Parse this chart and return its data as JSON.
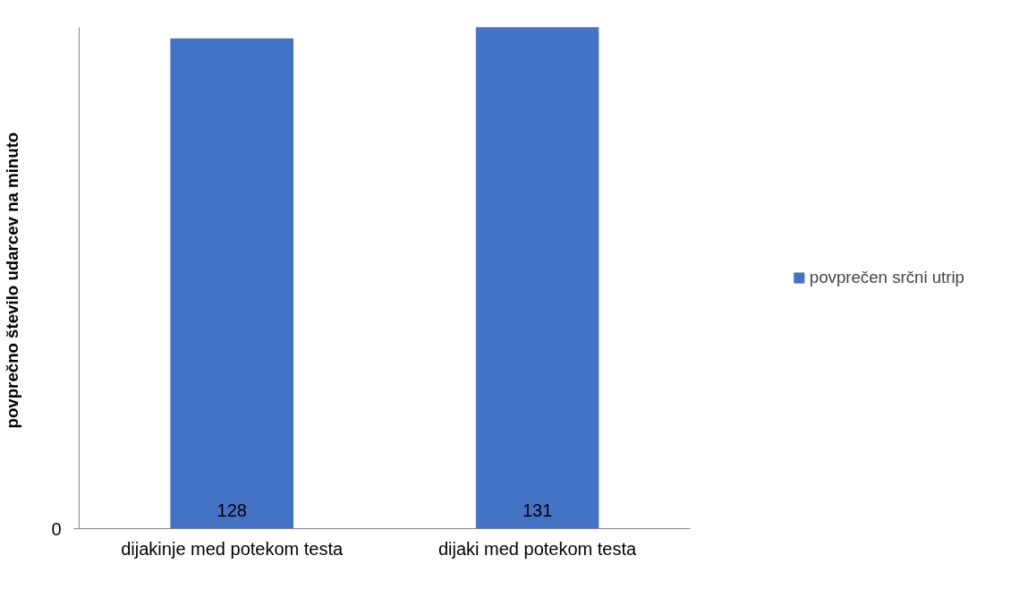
{
  "chart_data": {
    "type": "bar",
    "ylabel": "povprečno število udarcev  na minuto",
    "categories": [
      "dijakinje med potekom testa",
      "dijaki med potekom testa"
    ],
    "series": [
      {
        "name": "povprečen srčni utrip",
        "color": "#4472c4",
        "values": [
          128,
          131
        ]
      }
    ],
    "annotations": [
      "0"
    ],
    "data_labels": true,
    "legend": "right",
    "grid": false
  }
}
